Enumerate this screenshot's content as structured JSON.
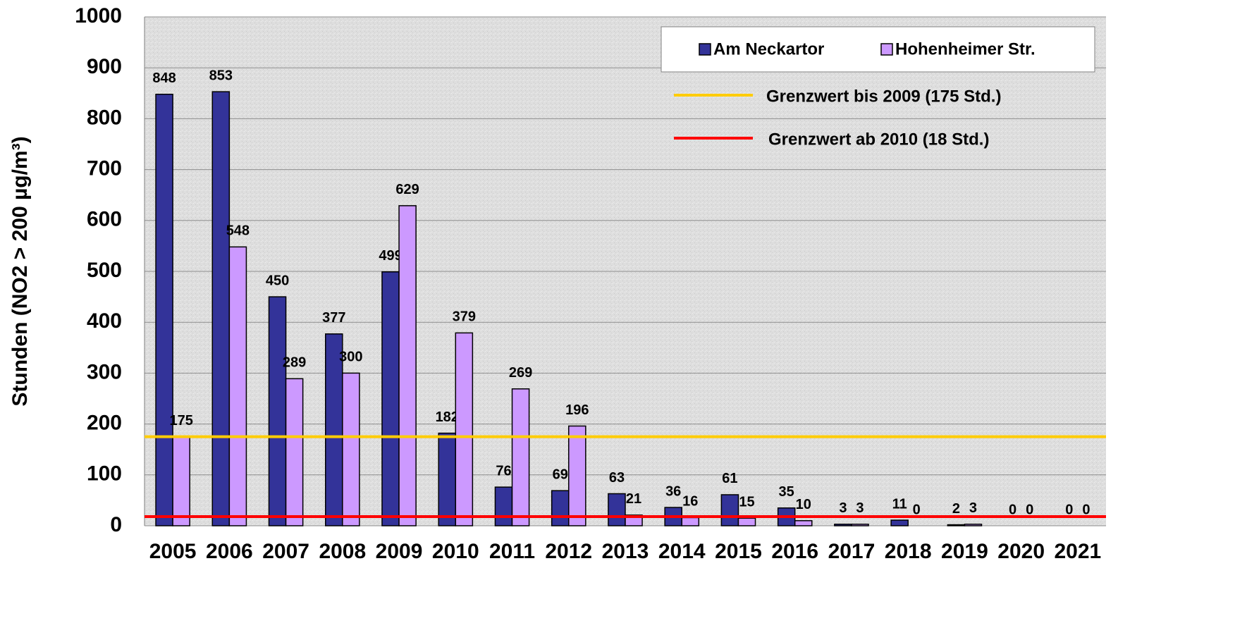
{
  "chart_data": {
    "type": "bar",
    "y_label": "Stunden (NO2 > 200 µg/m³)",
    "categories": [
      "2005",
      "2006",
      "2007",
      "2008",
      "2009",
      "2010",
      "2011",
      "2012",
      "2013",
      "2014",
      "2015",
      "2016",
      "2017",
      "2018",
      "2019",
      "2020",
      "2021"
    ],
    "series": [
      {
        "name": "Am Neckartor",
        "color": "#333399",
        "values": [
          848,
          853,
          450,
          377,
          499,
          182,
          76,
          69,
          63,
          36,
          61,
          35,
          3,
          11,
          2,
          0,
          0
        ]
      },
      {
        "name": "Hohenheimer Str.",
        "color": "#cc99ff",
        "values": [
          175,
          548,
          289,
          300,
          629,
          379,
          269,
          196,
          21,
          16,
          15,
          10,
          3,
          0,
          3,
          0,
          0
        ]
      }
    ],
    "reference_lines": [
      {
        "label": "Grenzwert bis 2009 (175 Std.)",
        "value": 175,
        "color": "#ffcc00"
      },
      {
        "label": "Grenzwert ab 2010 (18 Std.)",
        "value": 18,
        "color": "#ff0000"
      }
    ],
    "ylim": [
      0,
      1000
    ],
    "yticks": [
      0,
      100,
      200,
      300,
      400,
      500,
      600,
      700,
      800,
      900,
      1000
    ],
    "grid": true,
    "legend": "top-right"
  }
}
